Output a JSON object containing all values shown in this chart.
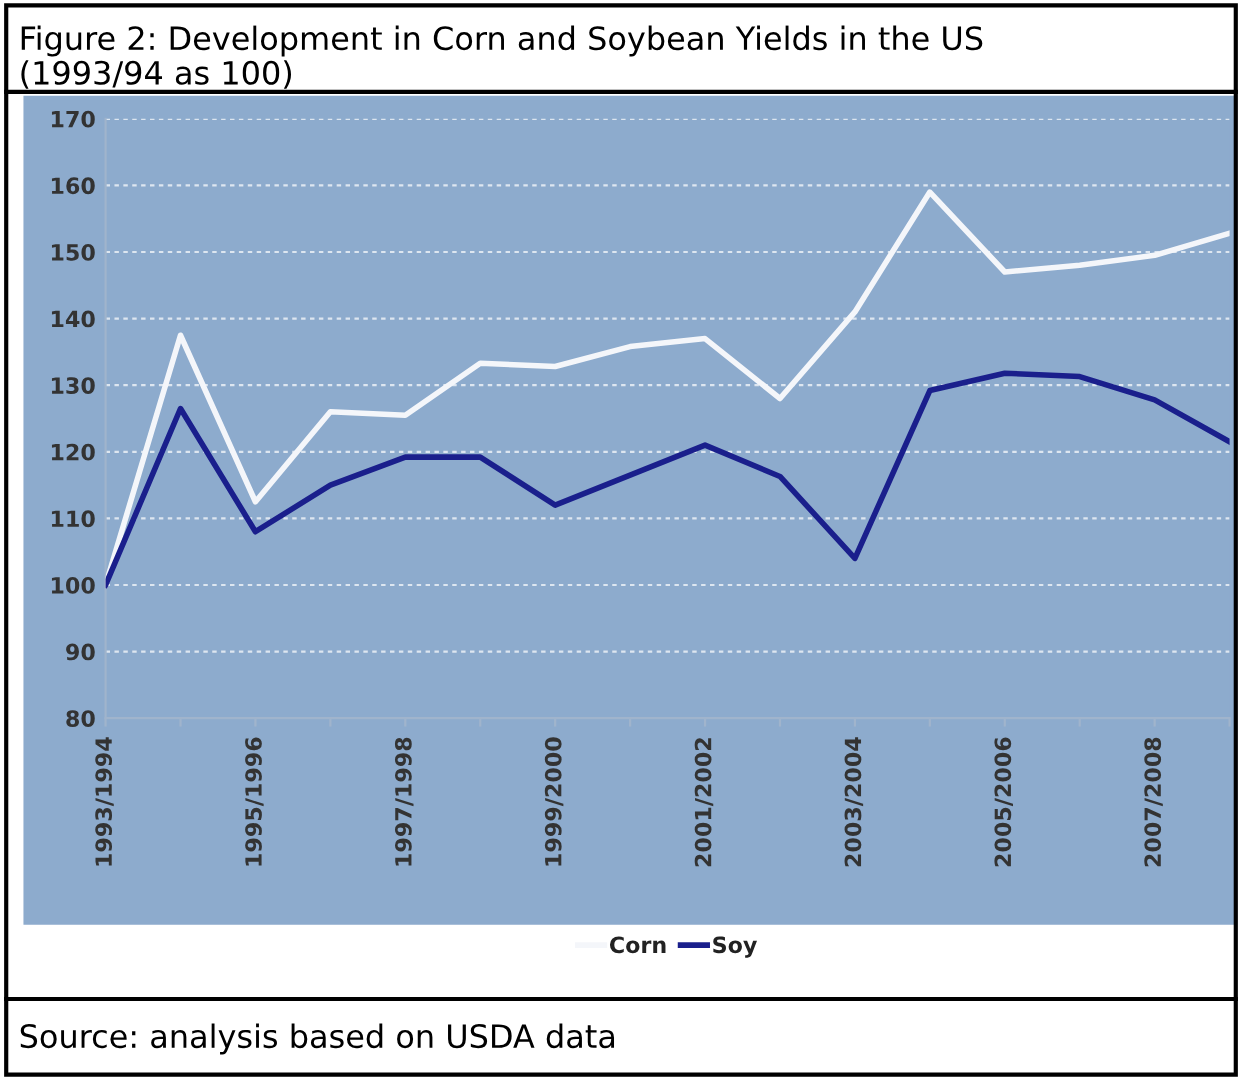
{
  "chart_data": {
    "type": "line",
    "title": "Figure 2: Development in Corn and Soybean Yields in the US",
    "subtitle": "(1993/94 as 100)",
    "categories": [
      "1993/1994",
      null,
      "1995/1996",
      null,
      "1997/1998",
      null,
      "1999/2000",
      null,
      "2001/2002",
      null,
      "2003/2004",
      null,
      "2005/2006",
      null,
      "2007/2008",
      null
    ],
    "series": [
      {
        "name": "Corn",
        "color": "#f4f6fa",
        "values": [
          100,
          137.5,
          112.5,
          126,
          125.5,
          133.3,
          132.8,
          135.8,
          137,
          128,
          141,
          159,
          147,
          148,
          149.5,
          152.8
        ]
      },
      {
        "name": "Soy",
        "color": "#1a1f8c",
        "values": [
          100,
          126.5,
          108,
          115,
          119.2,
          119.2,
          112,
          116.5,
          121,
          116.3,
          104,
          129.2,
          131.8,
          131.3,
          127.8,
          121.5
        ]
      }
    ],
    "ylim": [
      80,
      170
    ],
    "yticks": [
      80,
      90,
      100,
      110,
      120,
      130,
      140,
      150,
      160,
      170
    ],
    "grid": "y",
    "legend": "bottom",
    "marker": "none",
    "line_style": "solid",
    "annotations": [
      "Source: analysis based on USDA data"
    ]
  }
}
